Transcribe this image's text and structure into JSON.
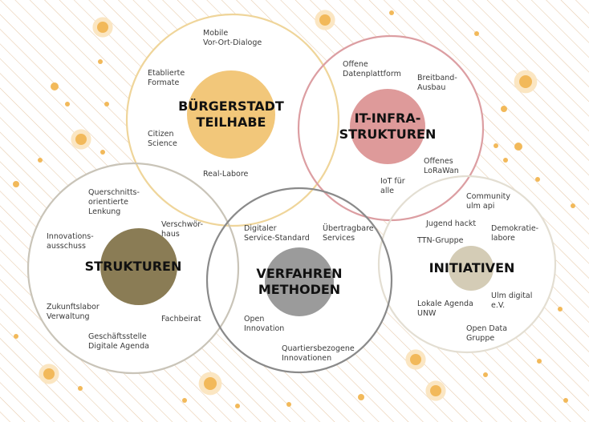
{
  "colors": {
    "stripes": "#e6c9a8",
    "dots": "#f2b95a",
    "dot_halo": "#fbe6c2",
    "buergerstadt": "#f2c77a",
    "buergerstadt_ring": "#efd59a",
    "it": "#de9a9a",
    "it_ring": "#dc9ea2",
    "strukturen": "#8a7c55",
    "strukturen_ring": "#c9c4b8",
    "verfahren": "#9b9b9b",
    "verfahren_ring": "#8a8a8a",
    "initiativen": "#d4ccb6",
    "initiativen_ring": "#e3ded2"
  },
  "topics": [
    {
      "id": "buergerstadt",
      "title": "BÜRGERSTADT\nTEILHABE",
      "items": [
        "Mobile\nVor-Ort-Dialoge",
        "Etablierte\nFormate",
        "Citizen\nScience",
        "Real-Labore"
      ]
    },
    {
      "id": "it",
      "title": "IT-INFRA-\nSTRUKTUREN",
      "items": [
        "Offene\nDatenplattform",
        "Breitband-\nAusbau",
        "Offenes\nLoRaWan",
        "IoT für\nalle"
      ]
    },
    {
      "id": "strukturen",
      "title": "STRUKTUREN",
      "items": [
        "Querschnitts-\norientierte\nLenkung",
        "Innovations-\nausschuss",
        "Verschwör-\nhaus",
        "Zukunftslabor\nVerwaltung",
        "Fachbeirat",
        "Geschäftsstelle\nDigitale Agenda"
      ]
    },
    {
      "id": "verfahren",
      "title": "VERFAHREN\nMETHODEN",
      "items": [
        "Digitaler\nService-Standard",
        "Übertragbare\nServices",
        "Open\nInnovation",
        "Quartiersbezogene\nInnovationen"
      ]
    },
    {
      "id": "initiativen",
      "title": "INITIATIVEN",
      "items": [
        "Community\nulm api",
        "Jugend hackt",
        "TTN-Gruppe",
        "Demokratie-\nlabore",
        "Lokale Agenda\nUNW",
        "Ulm digital\ne.V.",
        "Open Data\nGruppe"
      ]
    }
  ]
}
